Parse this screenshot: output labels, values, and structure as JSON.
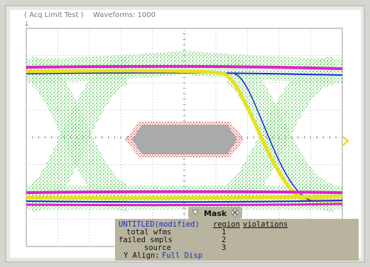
{
  "header": {
    "mode": "( Acq Limit Test )",
    "waveforms": "Waveforms: 1000"
  },
  "mask_panel": {
    "title": "Mask",
    "name": "UNTITLED(modified)",
    "columns": [
      "region",
      "violations"
    ],
    "rows": [
      {
        "label": "total wfms",
        "region": 1
      },
      {
        "label": "failed smpls",
        "region": 2
      },
      {
        "label": "source",
        "region": 3
      }
    ],
    "y_align": {
      "label": "Y Align:",
      "value": "Full Disp"
    }
  }
}
